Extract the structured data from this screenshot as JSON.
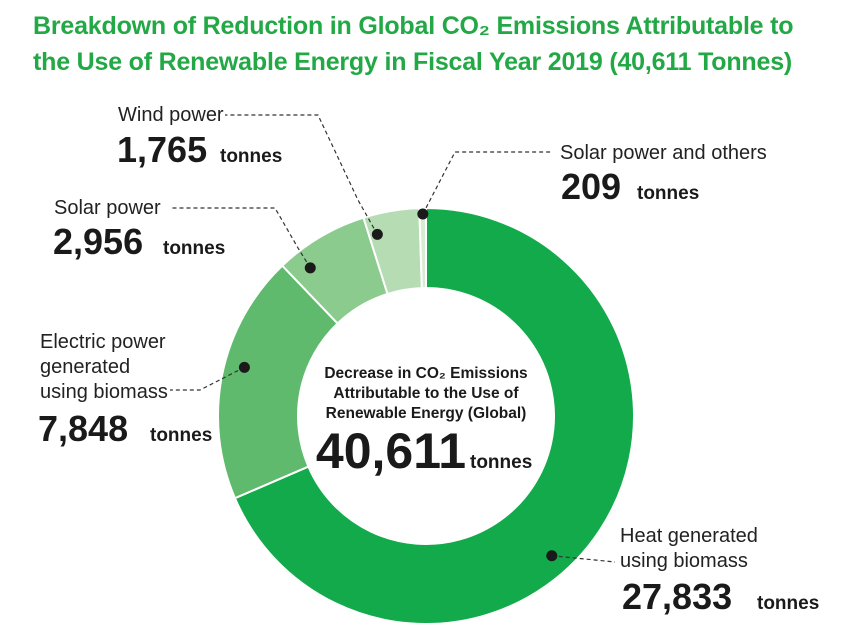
{
  "title": {
    "line1": "Breakdown of Reduction in Global CO₂ Emissions Attributable to",
    "line2": "the Use of Renewable Energy in Fiscal Year 2019 (40,611 Tonnes)"
  },
  "center": {
    "line1": "Decrease in CO₂ Emissions",
    "line2": "Attributable to the Use of",
    "line3": "Renewable Energy (Global)",
    "value": "40,611",
    "unit": "tonnes"
  },
  "colors": {
    "title": "#22a845",
    "heat": "#12aa4a",
    "biomass_electric": "#5fba6e",
    "solar": "#8ccb8e",
    "wind": "#b6dcb3",
    "solar_others": "#d8ecd4"
  },
  "chart_data": {
    "type": "pie",
    "title": "Breakdown of Reduction in Global CO₂ Emissions Attributable to the Use of Renewable Energy in Fiscal Year 2019 (40,611 Tonnes)",
    "unit": "tonnes",
    "total": 40611,
    "categories": [
      "Heat generated using biomass",
      "Electric power generated using biomass",
      "Solar power",
      "Wind power",
      "Solar power and others"
    ],
    "values": [
      27833,
      7848,
      2956,
      1765,
      209
    ]
  },
  "labels": {
    "heat": {
      "lines": [
        "Heat generated",
        "using biomass"
      ],
      "value": "27,833",
      "unit": "tonnes"
    },
    "biomass_electric": {
      "lines": [
        "Electric power",
        "generated",
        "using biomass"
      ],
      "value": "7,848",
      "unit": "tonnes"
    },
    "solar": {
      "lines": [
        "Solar power"
      ],
      "value": "2,956",
      "unit": "tonnes"
    },
    "wind": {
      "lines": [
        "Wind power"
      ],
      "value": "1,765",
      "unit": "tonnes"
    },
    "solar_others": {
      "lines": [
        "Solar power and others"
      ],
      "value": "209",
      "unit": "tonnes"
    }
  }
}
